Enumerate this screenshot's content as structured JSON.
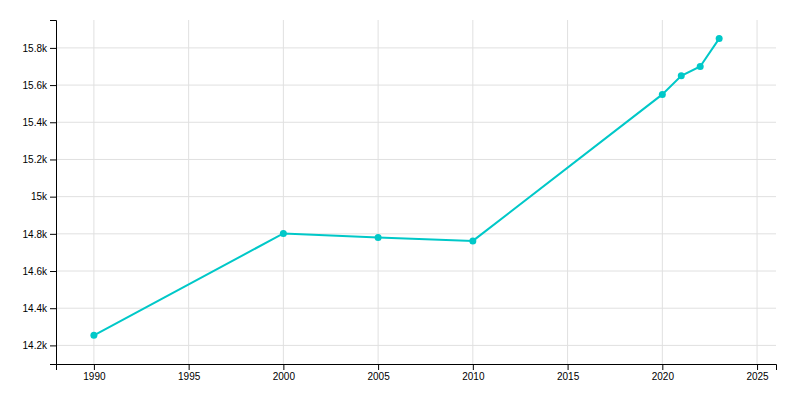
{
  "chart_data": {
    "type": "line",
    "x": [
      1990,
      2000,
      2005,
      2010,
      2020,
      2021,
      2022,
      2023
    ],
    "values": [
      14254,
      14802,
      14780,
      14762,
      15550,
      15650,
      15700,
      15850
    ],
    "color": "#00c8c8",
    "marker": "circle",
    "xlim": [
      1988,
      2026
    ],
    "ylim": [
      14100,
      15950
    ],
    "xticks": [
      1990,
      1995,
      2000,
      2005,
      2010,
      2015,
      2020,
      2025
    ],
    "yticks": [
      {
        "value": 14200,
        "label": "14.2k"
      },
      {
        "value": 14400,
        "label": "14.4k"
      },
      {
        "value": 14600,
        "label": "14.6k"
      },
      {
        "value": 14800,
        "label": "14.8k"
      },
      {
        "value": 15000,
        "label": "15k"
      },
      {
        "value": 15200,
        "label": "15.2k"
      },
      {
        "value": 15400,
        "label": "15.4k"
      },
      {
        "value": 15600,
        "label": "15.6k"
      },
      {
        "value": 15800,
        "label": "15.8k"
      }
    ],
    "grid": true
  }
}
